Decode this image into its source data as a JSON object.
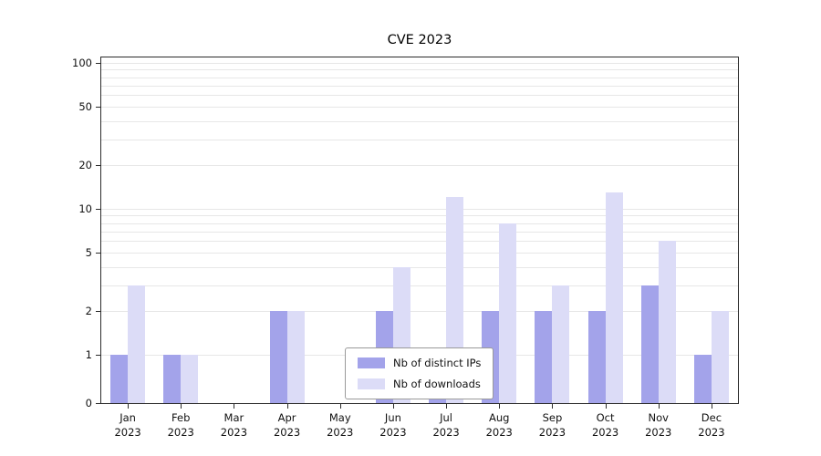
{
  "chart_data": {
    "type": "bar",
    "title": "CVE 2023",
    "year": "2023",
    "months": [
      "Jan",
      "Feb",
      "Mar",
      "Apr",
      "May",
      "Jun",
      "Jul",
      "Aug",
      "Sep",
      "Oct",
      "Nov",
      "Dec"
    ],
    "series": [
      {
        "name": "Nb of distinct IPs",
        "key": "distinct-ips",
        "color": "#a3a3ea",
        "values": [
          1,
          1,
          0,
          2,
          0,
          2,
          1,
          2,
          2,
          2,
          3,
          1
        ]
      },
      {
        "name": "Nb of downloads",
        "key": "downloads",
        "color": "#dcdcf7",
        "values": [
          3,
          1,
          0,
          2,
          0,
          4,
          12,
          8,
          3,
          13,
          6,
          2
        ]
      }
    ],
    "yticks": [
      0,
      1,
      2,
      5,
      10,
      20,
      50,
      100
    ],
    "ylim": [
      0,
      100
    ],
    "yscale": "symlog",
    "grid": "horizontal",
    "gridcolor": "#e7e7e7",
    "axis_color": "#2b2b2b",
    "legend_position": "lower center"
  }
}
